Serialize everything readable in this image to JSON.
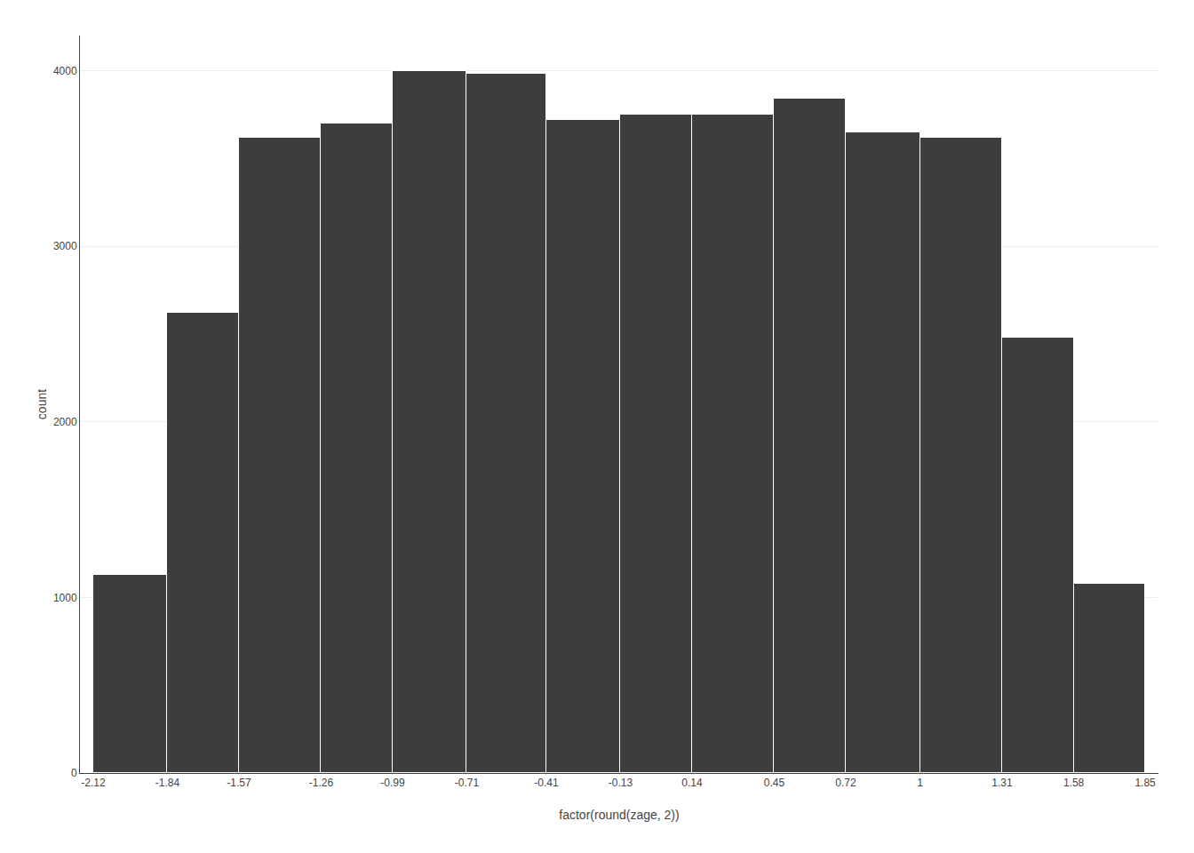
{
  "chart_data": {
    "type": "histogram",
    "bins": [
      -2.12,
      -1.84,
      -1.57,
      -1.26,
      -0.99,
      -0.71,
      -0.41,
      -0.13,
      0.14,
      0.45,
      0.72,
      1,
      1.31,
      1.58,
      1.85
    ],
    "values": [
      1130,
      2620,
      3620,
      3700,
      4000,
      3980,
      3720,
      3750,
      3750,
      3840,
      3650,
      3620,
      2480,
      1080
    ],
    "color": "#3d3d3d",
    "xlabel": "factor(round(zage, 2))",
    "ylabel": "count",
    "xlim": [
      -2.17,
      1.9
    ],
    "xticks": [
      -2.12,
      -1.84,
      -1.57,
      -1.26,
      -0.99,
      -0.71,
      -0.41,
      -0.13,
      0.14,
      0.45,
      0.72,
      1,
      1.31,
      1.58,
      1.85
    ],
    "ylim": [
      0,
      4200
    ],
    "yticks": [
      0,
      1000,
      2000,
      3000,
      4000
    ],
    "grid": true
  }
}
